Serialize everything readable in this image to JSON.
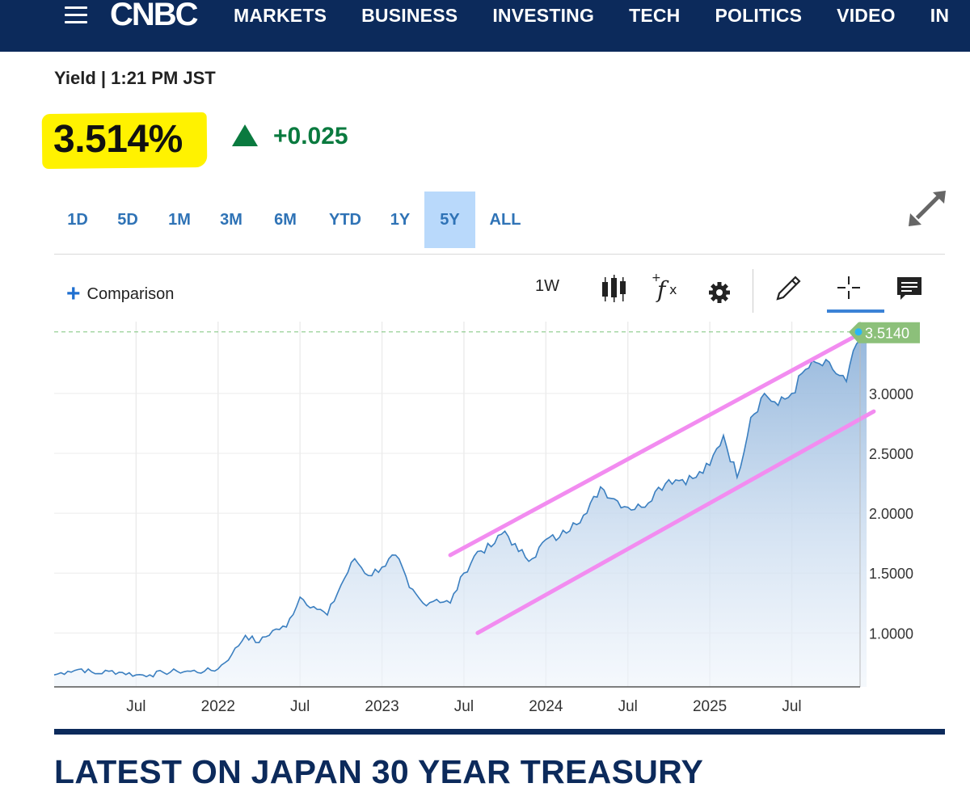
{
  "nav": {
    "logo": "CNBC",
    "items": [
      "MARKETS",
      "BUSINESS",
      "INVESTING",
      "TECH",
      "POLITICS",
      "VIDEO",
      "IN"
    ]
  },
  "quote": {
    "label": "Yield | 1:21 PM JST",
    "price": "3.514%",
    "change": "+0.025",
    "change_color": "#0a7a3f",
    "highlight_color": "#fff200"
  },
  "ranges": {
    "items": [
      "1D",
      "5D",
      "1M",
      "3M",
      "6M",
      "YTD",
      "1Y",
      "5Y",
      "ALL"
    ],
    "active": "5Y"
  },
  "toolbar": {
    "comparison_label": "Comparison",
    "interval": "1W",
    "icons": [
      "candlestick-icon",
      "function-icon",
      "gear-icon",
      "pencil-icon",
      "crosshair-icon",
      "comment-icon"
    ]
  },
  "chart_data": {
    "type": "area",
    "last_value_label": "3.5140",
    "last_value": 3.514,
    "y_ticks": [
      "1.0000",
      "1.5000",
      "2.0000",
      "2.5000",
      "3.0000"
    ],
    "x_ticks": [
      "Jul",
      "2022",
      "Jul",
      "2023",
      "Jul",
      "2024",
      "Jul",
      "2025",
      "Jul"
    ],
    "ylim": [
      0.55,
      3.6
    ],
    "x_range": [
      "2021-01",
      "2025-12"
    ],
    "line_color": "#3b7fc0",
    "channel_color": "#f28cf0",
    "x": [
      "2021-01",
      "2021-02",
      "2021-03",
      "2021-04",
      "2021-05",
      "2021-06",
      "2021-07",
      "2021-08",
      "2021-09",
      "2021-10",
      "2021-11",
      "2021-12",
      "2022-01",
      "2022-02",
      "2022-03",
      "2022-04",
      "2022-05",
      "2022-06",
      "2022-07",
      "2022-08",
      "2022-09",
      "2022-10",
      "2022-11",
      "2022-12",
      "2023-01",
      "2023-02",
      "2023-03",
      "2023-04",
      "2023-05",
      "2023-06",
      "2023-07",
      "2023-08",
      "2023-09",
      "2023-10",
      "2023-11",
      "2023-12",
      "2024-01",
      "2024-02",
      "2024-03",
      "2024-04",
      "2024-05",
      "2024-06",
      "2024-07",
      "2024-08",
      "2024-09",
      "2024-10",
      "2024-11",
      "2024-12",
      "2025-01",
      "2025-02",
      "2025-03",
      "2025-04",
      "2025-05",
      "2025-06",
      "2025-07",
      "2025-08",
      "2025-09",
      "2025-10",
      "2025-11",
      "2025-12"
    ],
    "y": [
      0.65,
      0.68,
      0.7,
      0.66,
      0.68,
      0.67,
      0.65,
      0.65,
      0.67,
      0.68,
      0.68,
      0.68,
      0.7,
      0.82,
      0.98,
      0.92,
      1.02,
      1.05,
      1.3,
      1.22,
      1.15,
      1.4,
      1.62,
      1.48,
      1.55,
      1.65,
      1.38,
      1.25,
      1.28,
      1.25,
      1.5,
      1.68,
      1.72,
      1.85,
      1.68,
      1.62,
      1.78,
      1.8,
      1.92,
      2.0,
      2.22,
      2.12,
      2.05,
      2.05,
      2.18,
      2.28,
      2.28,
      2.3,
      2.4,
      2.65,
      2.3,
      2.8,
      3.0,
      2.9,
      3.0,
      3.2,
      3.25,
      3.2,
      3.1,
      3.514
    ],
    "channel": {
      "upper": [
        [
          "2023-06",
          1.65
        ],
        [
          "2025-12",
          3.5
        ]
      ],
      "lower": [
        [
          "2023-08",
          1.0
        ],
        [
          "2026-01",
          2.85
        ]
      ]
    }
  },
  "footer": {
    "heading": "LATEST ON JAPAN 30 YEAR TREASURY"
  }
}
